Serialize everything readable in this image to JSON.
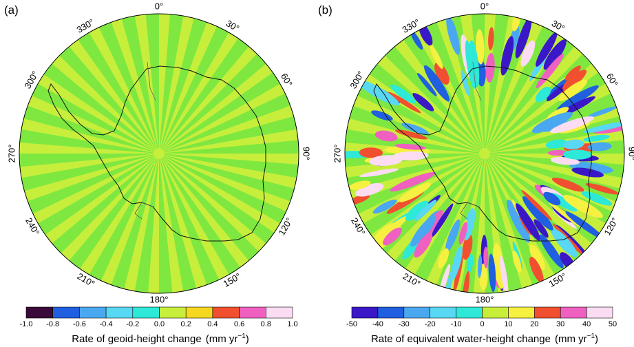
{
  "panels": [
    {
      "label": "(a)",
      "colorbar_title_prefix": "Rate of geoid-height change",
      "colorbar_units": "(mm yr",
      "colorbar_units_exp": "−1",
      "colorbar_units_close": ")",
      "tick_labels": [
        "-1.0",
        "-0.8",
        "-0.6",
        "-0.4",
        "-0.2",
        "0.0",
        "0.2",
        "0.4",
        "0.6",
        "0.8",
        "1.0"
      ],
      "colors": [
        "#3a0a3a",
        "#1f5fe0",
        "#4aa8f0",
        "#58d8f2",
        "#2ee8d8",
        "#7ee840",
        "#c8ee3c",
        "#f6d820",
        "#f05030",
        "#f060c0",
        "#fbdcf2"
      ]
    },
    {
      "label": "(b)",
      "colorbar_title_prefix": "Rate of equivalent water-height change",
      "colorbar_units": "(mm yr",
      "colorbar_units_exp": "−1",
      "colorbar_units_close": ")",
      "tick_labels": [
        "-50",
        "-40",
        "-30",
        "-20",
        "-10",
        "0",
        "10",
        "20",
        "30",
        "40",
        "50"
      ],
      "colors": [
        "#3a18c8",
        "#1f5fe0",
        "#4aa8f0",
        "#58d8f2",
        "#2ee8d8",
        "#7ee840",
        "#c8ee3c",
        "#f6f040",
        "#f05030",
        "#f060c0",
        "#fbdcf2"
      ]
    }
  ],
  "longitude_labels": [
    "0°",
    "30°",
    "60°",
    "90°",
    "120°",
    "150°",
    "180°",
    "210°",
    "240°",
    "270°",
    "300°",
    "330°"
  ]
}
